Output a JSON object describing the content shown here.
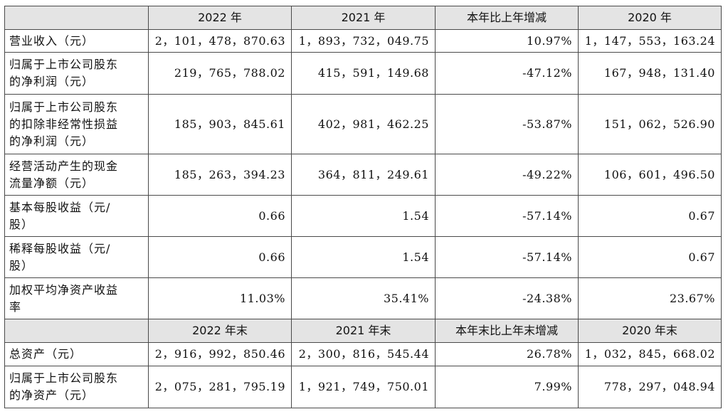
{
  "header1": {
    "corner": "",
    "col1": "2022 年",
    "col2": "2021 年",
    "col3": "本年比上年增减",
    "col4": "2020 年"
  },
  "rows1": [
    {
      "label": [
        "营业收入（元）"
      ],
      "v1": "2，101，478，870.63",
      "v2": "1，893，732，049.75",
      "v3": "10.97%",
      "v4": "1，147，553，163.24"
    },
    {
      "label": [
        "归属于上市公司股东",
        "的净利润（元）"
      ],
      "v1": "219，765，788.02",
      "v2": "415，591，149.68",
      "v3": "-47.12%",
      "v4": "167，948，131.40"
    },
    {
      "label": [
        "归属于上市公司股东",
        "的扣除非经常性损益",
        "的净利润（元）"
      ],
      "v1": "185，903，845.61",
      "v2": "402，981，462.25",
      "v3": "-53.87%",
      "v4": "151，062，526.90"
    },
    {
      "label": [
        "经营活动产生的现金",
        "流量净额（元）"
      ],
      "v1": "185，263，394.23",
      "v2": "364，811，249.61",
      "v3": "-49.22%",
      "v4": "106，601，496.50"
    },
    {
      "label": [
        "基本每股收益（元/",
        "股）"
      ],
      "v1": "0.66",
      "v2": "1.54",
      "v3": "-57.14%",
      "v4": "0.67"
    },
    {
      "label": [
        "稀释每股收益（元/",
        "股）"
      ],
      "v1": "0.66",
      "v2": "1.54",
      "v3": "-57.14%",
      "v4": "0.67"
    },
    {
      "label": [
        "加权平均净资产收益",
        "率"
      ],
      "v1": "11.03%",
      "v2": "35.41%",
      "v3": "-24.38%",
      "v4": "23.67%"
    }
  ],
  "header2": {
    "corner": "",
    "col1": "2022 年末",
    "col2": "2021 年末",
    "col3": "本年末比上年末增减",
    "col4": "2020 年末"
  },
  "rows2": [
    {
      "label": [
        "总资产（元）"
      ],
      "v1": "2，916，992，850.46",
      "v2": "2，300，816，545.44",
      "v3": "26.78%",
      "v4": "1，032，845，668.02"
    },
    {
      "label": [
        "归属于上市公司股东",
        "的净资产（元）"
      ],
      "v1": "2，075，281，795.19",
      "v2": "1，921，749，750.01",
      "v3": "7.99%",
      "v4": "778，297，048.94"
    }
  ],
  "colors": {
    "header_bg": "#e4e4e4",
    "border": "#4a4a4a",
    "text": "#111111"
  }
}
